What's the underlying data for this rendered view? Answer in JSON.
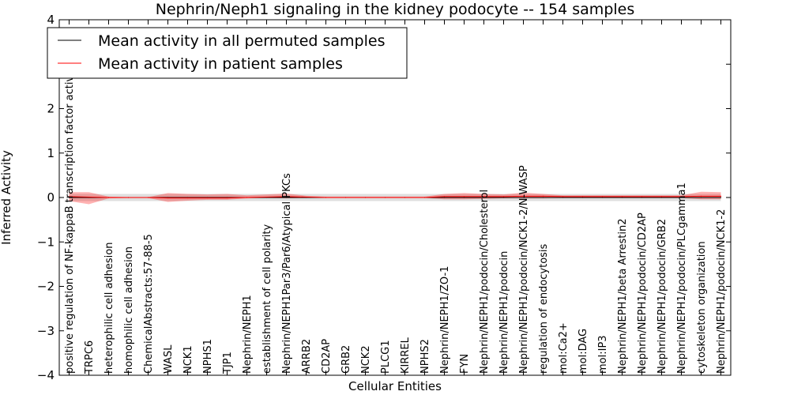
{
  "chart_data": {
    "type": "line",
    "title": "Nephrin/Neph1 signaling in the kidney podocyte -- 154 samples",
    "xlabel": "Cellular Entities",
    "ylabel": "Inferred Activity",
    "ylim": [
      -4,
      4
    ],
    "yticks": [
      -4,
      -3,
      -2,
      -1,
      0,
      1,
      2,
      3,
      4
    ],
    "ytick_labels": [
      "−4",
      "−3",
      "−2",
      "−1",
      "0",
      "1",
      "2",
      "3",
      "4"
    ],
    "grid": false,
    "legend_position": "top-left",
    "categories": [
      "positive regulation of NF-kappaB transcription factor activity",
      "TRPC6",
      "heterophilic cell adhesion",
      "homophilic cell adhesion",
      "ChemicalAbstracts:57-88-5",
      "WASL",
      "NCK1",
      "NPHS1",
      "TJP1",
      "Nephrin/NEPH1",
      "establishment of cell polarity",
      "Nephrin/NEPH1Par3/Par6/Atypical PKCs",
      "ARRB2",
      "CD2AP",
      "GRB2",
      "NCK2",
      "PLCG1",
      "KIRREL",
      "NPHS2",
      "Nephrin/NEPH1/ZO-1",
      "FYN",
      "Nephrin/NEPH1/podocin/Cholesterol",
      "Nephrin/NEPH1/podocin",
      "Nephrin/NEPH1/podocin/NCK1-2/N-WASP",
      "regulation of endocytosis",
      "mol:Ca2+",
      "mol:DAG",
      "mol:IP3",
      "Nephrin/NEPH1/beta Arrestin2",
      "Nephrin/NEPH1/podocin/CD2AP",
      "Nephrin/NEPH1/podocin/GRB2",
      "Nephrin/NEPH1/podocin/PLCgamma1",
      "cytoskeleton organization",
      "Nephrin/NEPH1/podocin/NCK1-2"
    ],
    "series": [
      {
        "name": "Mean activity in all permuted samples",
        "color": "#000000",
        "values": [
          0,
          0,
          0,
          0,
          0,
          0,
          0,
          0,
          0,
          0,
          0,
          0,
          0,
          0,
          0,
          0,
          0,
          0,
          0,
          0,
          0,
          0,
          0,
          0,
          0,
          0,
          0,
          0,
          0,
          0,
          0,
          0,
          0,
          0
        ],
        "band_lower": [
          -0.08,
          -0.08,
          -0.08,
          -0.08,
          -0.08,
          -0.08,
          -0.08,
          -0.08,
          -0.08,
          -0.08,
          -0.08,
          -0.08,
          -0.08,
          -0.08,
          -0.08,
          -0.08,
          -0.08,
          -0.08,
          -0.08,
          -0.08,
          -0.08,
          -0.08,
          -0.08,
          -0.08,
          -0.08,
          -0.08,
          -0.08,
          -0.08,
          -0.08,
          -0.08,
          -0.08,
          -0.08,
          -0.08,
          -0.08
        ],
        "band_upper": [
          0.08,
          0.08,
          0.08,
          0.08,
          0.08,
          0.08,
          0.08,
          0.08,
          0.08,
          0.08,
          0.08,
          0.08,
          0.08,
          0.08,
          0.08,
          0.08,
          0.08,
          0.08,
          0.08,
          0.08,
          0.08,
          0.08,
          0.08,
          0.08,
          0.08,
          0.08,
          0.08,
          0.08,
          0.08,
          0.08,
          0.08,
          0.08,
          0.08,
          0.08
        ],
        "band_color": "#b0b0b0"
      },
      {
        "name": "Mean activity in patient samples",
        "color": "#ff0000",
        "values": [
          0.02,
          0.01,
          0,
          0,
          0,
          -0.01,
          -0.01,
          -0.01,
          -0.01,
          0,
          0.01,
          0.02,
          0.01,
          0,
          0,
          0,
          0,
          0,
          0,
          0.02,
          0.02,
          0.02,
          0.02,
          0.03,
          0.03,
          0.02,
          0.02,
          0.02,
          0.02,
          0.02,
          0.02,
          0.02,
          0.03,
          0.03
        ],
        "band_lower": [
          -0.08,
          -0.15,
          -0.02,
          -0.01,
          -0.01,
          -0.1,
          -0.07,
          -0.05,
          -0.05,
          -0.02,
          -0.01,
          -0.02,
          -0.01,
          -0.01,
          -0.01,
          -0.01,
          -0.01,
          -0.01,
          -0.01,
          -0.04,
          -0.04,
          -0.03,
          -0.02,
          -0.02,
          -0.02,
          -0.01,
          -0.01,
          -0.01,
          -0.01,
          -0.01,
          -0.01,
          -0.01,
          -0.04,
          -0.04
        ],
        "band_upper": [
          0.12,
          0.12,
          0.02,
          0.01,
          0.01,
          0.1,
          0.08,
          0.07,
          0.08,
          0.05,
          0.07,
          0.09,
          0.04,
          0.02,
          0.02,
          0.02,
          0.02,
          0.02,
          0.02,
          0.08,
          0.1,
          0.08,
          0.07,
          0.11,
          0.08,
          0.05,
          0.05,
          0.05,
          0.05,
          0.05,
          0.05,
          0.05,
          0.13,
          0.12
        ],
        "band_color": "#ff0000"
      }
    ]
  }
}
